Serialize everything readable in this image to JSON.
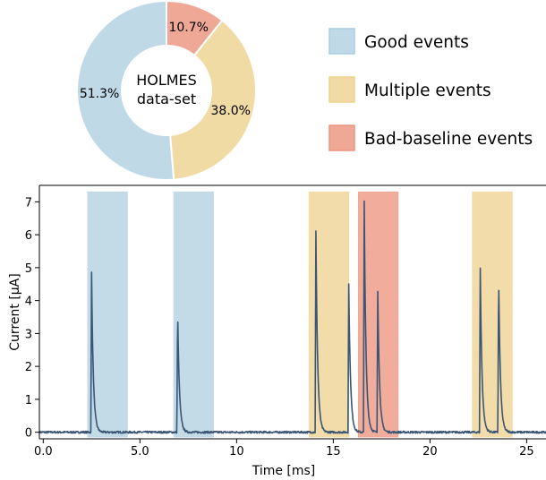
{
  "chart_data": [
    {
      "type": "pie",
      "center_text": "HOLMES\ndata-set",
      "slices": [
        {
          "label": "Bad-baseline events",
          "value": 10.7,
          "text": "10.7%",
          "color": "#f0a896"
        },
        {
          "label": "Multiple events",
          "value": 38.0,
          "text": "38.0%",
          "color": "#f1dba5"
        },
        {
          "label": "Good events",
          "value": 51.3,
          "text": "51.3%",
          "color": "#c0d9e6"
        }
      ],
      "donut": true,
      "legend": {
        "placement": "right",
        "entries": [
          {
            "label": "Good events",
            "color": "#c0d9e6",
            "edge": "#a9cde0"
          },
          {
            "label": "Multiple events",
            "color": "#f1dba5",
            "edge": "#eed08a"
          },
          {
            "label": "Bad-baseline events",
            "color": "#f0a896",
            "edge": "#ec9580"
          }
        ]
      }
    },
    {
      "type": "line",
      "xlabel": "Time [ms]",
      "ylabel": "Current [μA]",
      "xlim": [
        -0.2,
        26
      ],
      "ylim": [
        -0.2,
        7.5
      ],
      "xticks": [
        0.0,
        5.0,
        10,
        15,
        20,
        25
      ],
      "xtick_labels": [
        "0.0",
        "5.0",
        "10",
        "15",
        "20",
        "25"
      ],
      "yticks": [
        0,
        1,
        2,
        3,
        4,
        5,
        6,
        7
      ],
      "ytick_labels": [
        "0",
        "1",
        "2",
        "3",
        "4",
        "5",
        "6",
        "7"
      ],
      "grid": false,
      "line_color": "#3b5575",
      "baseline": 0,
      "pulses": [
        {
          "t": 2.5,
          "amplitude": 4.85
        },
        {
          "t": 6.95,
          "amplitude": 3.72
        },
        {
          "t": 14.1,
          "amplitude": 6.1
        },
        {
          "t": 15.8,
          "amplitude": 4.5
        },
        {
          "t": 16.6,
          "amplitude": 7.0
        },
        {
          "t": 17.3,
          "amplitude": 4.3
        },
        {
          "t": 22.6,
          "amplitude": 5.0
        },
        {
          "t": 23.55,
          "amplitude": 4.8
        }
      ],
      "event_windows": [
        {
          "x0": 2.3,
          "x1": 4.35,
          "category": "Good events",
          "color": "#c0d9e6"
        },
        {
          "x0": 6.75,
          "x1": 8.8,
          "category": "Good events",
          "color": "#c0d9e6"
        },
        {
          "x0": 13.75,
          "x1": 15.8,
          "category": "Multiple events",
          "color": "#f1dba5"
        },
        {
          "x0": 16.3,
          "x1": 18.35,
          "category": "Bad-baseline events",
          "color": "#f0a896"
        },
        {
          "x0": 22.2,
          "x1": 24.25,
          "category": "Multiple events",
          "color": "#f1dba5"
        }
      ]
    }
  ]
}
